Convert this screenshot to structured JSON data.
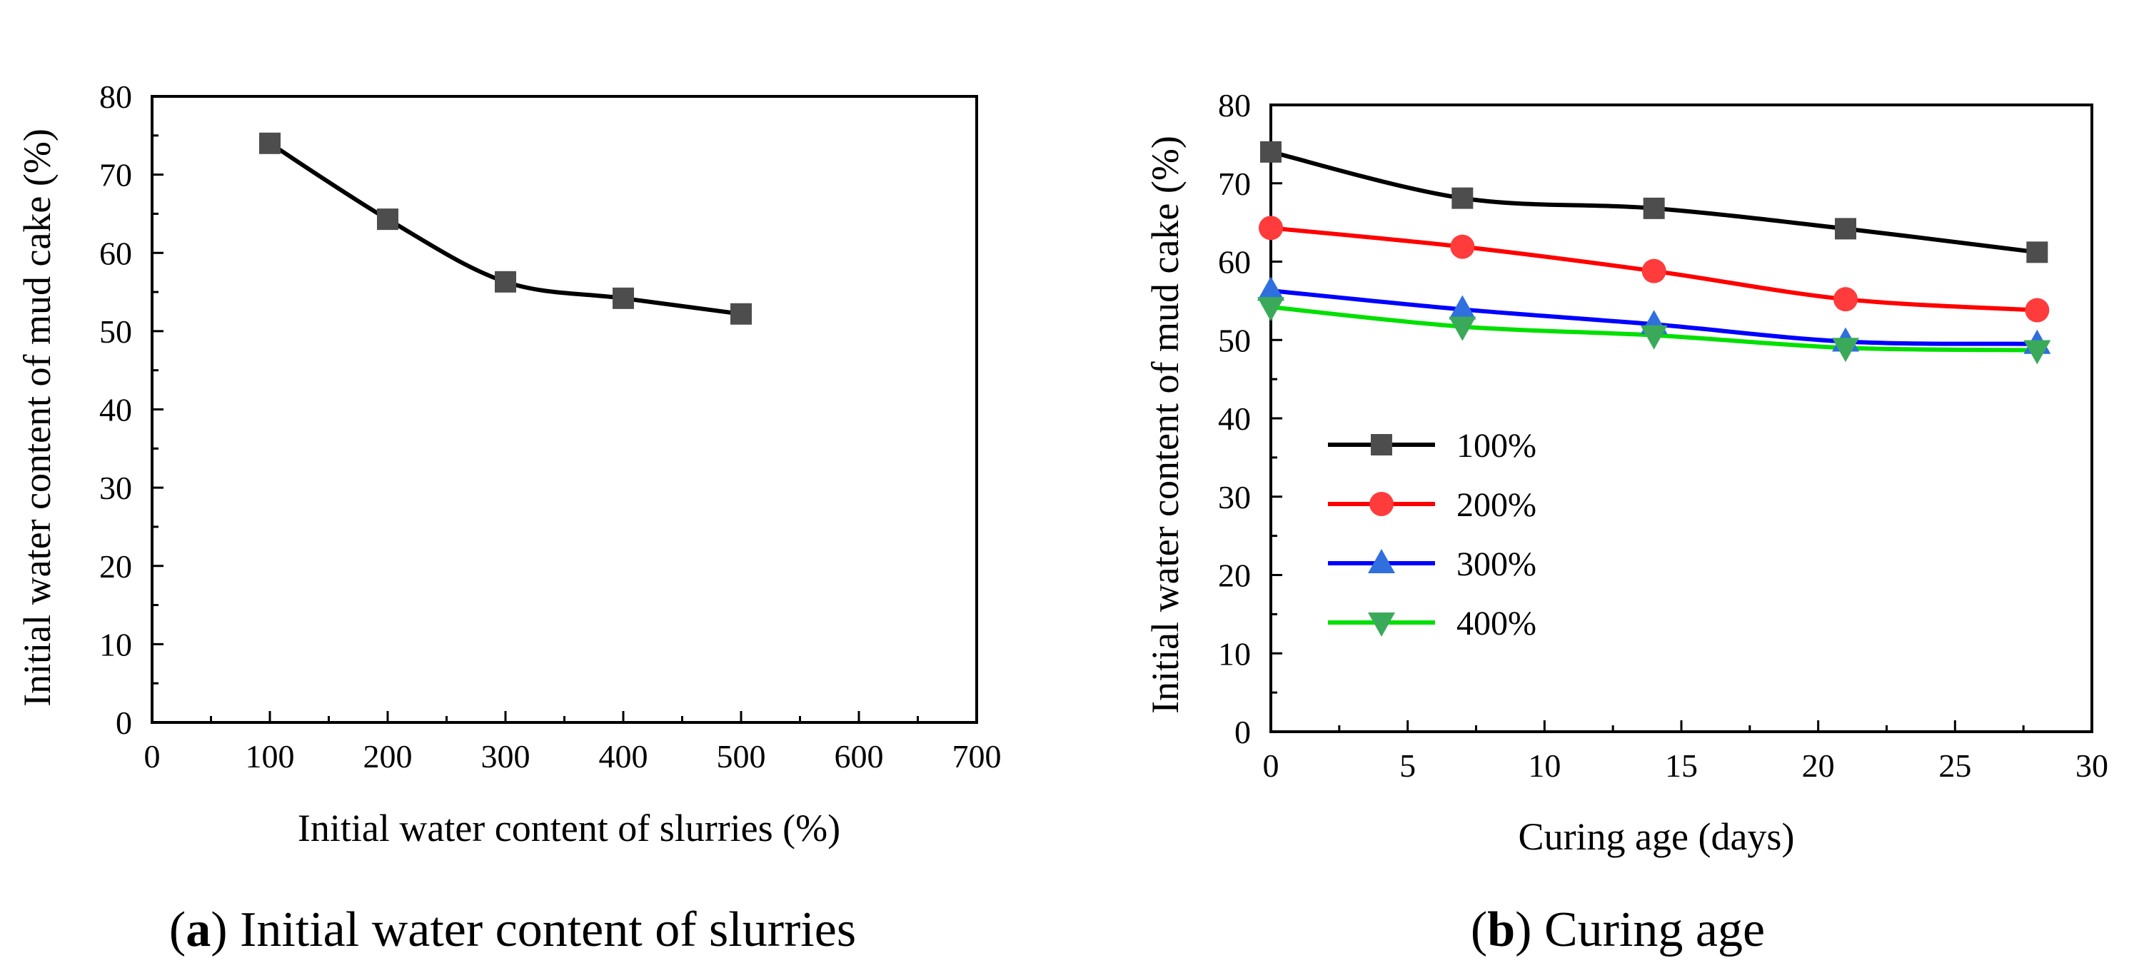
{
  "chart_data": [
    {
      "type": "line",
      "panel": "a",
      "caption_letter": "a",
      "caption_text": "Initial water content of slurries",
      "xlabel": "Initial water content of slurries (%)",
      "ylabel": "Initial water content of mud cake (%)",
      "xlim": [
        0,
        700
      ],
      "ylim": [
        0,
        80
      ],
      "x_ticks": [
        0,
        100,
        200,
        300,
        400,
        500,
        600,
        700
      ],
      "y_ticks": [
        0,
        10,
        20,
        30,
        40,
        50,
        60,
        70,
        80
      ],
      "series": [
        {
          "name": "",
          "color": "#000000",
          "marker_color": "#4d4d4d",
          "marker": "square",
          "x": [
            100,
            200,
            300,
            400,
            500
          ],
          "y": [
            74.0,
            64.3,
            56.3,
            54.2,
            52.2
          ]
        }
      ]
    },
    {
      "type": "line",
      "panel": "b",
      "caption_letter": "b",
      "caption_text": "Curing age",
      "xlabel": "Curing age (days)",
      "ylabel": "Initial water content of mud cake (%)",
      "xlim": [
        0,
        30
      ],
      "ylim": [
        0,
        80
      ],
      "x_ticks": [
        0,
        5,
        10,
        15,
        20,
        25,
        30
      ],
      "y_ticks": [
        0,
        10,
        20,
        30,
        40,
        50,
        60,
        70,
        80
      ],
      "legend_position": "middle-left",
      "series": [
        {
          "name": "100%",
          "color": "#000000",
          "marker_color": "#4d4d4d",
          "marker": "square",
          "x": [
            0,
            7,
            14,
            21,
            28
          ],
          "y": [
            74.0,
            68.1,
            66.8,
            64.2,
            61.2
          ]
        },
        {
          "name": "200%",
          "color": "#ff0000",
          "marker_color": "#ff3b3b",
          "marker": "circle",
          "x": [
            0,
            7,
            14,
            21,
            28
          ],
          "y": [
            64.3,
            61.9,
            58.8,
            55.2,
            53.8
          ]
        },
        {
          "name": "300%",
          "color": "#0000ff",
          "marker_color": "#2f6fde",
          "marker": "triangle-up",
          "x": [
            0,
            7,
            14,
            21,
            28
          ],
          "y": [
            56.3,
            53.9,
            52.0,
            49.8,
            49.5
          ]
        },
        {
          "name": "400%",
          "color": "#00e000",
          "marker_color": "#3aaa5a",
          "marker": "triangle-down",
          "x": [
            0,
            7,
            14,
            21,
            28
          ],
          "y": [
            54.2,
            51.7,
            50.6,
            49.0,
            48.7
          ]
        }
      ]
    }
  ]
}
